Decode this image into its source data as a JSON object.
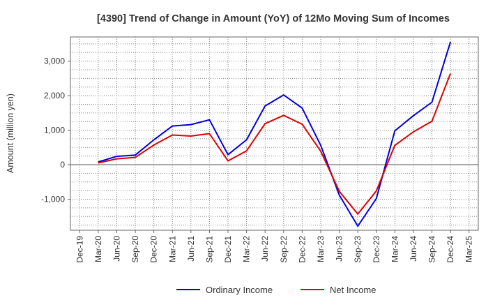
{
  "chart_data": {
    "type": "line",
    "title": "[4390]  Trend of Change in Amount (YoY) of 12Mo Moving Sum of Incomes",
    "xlabel": "",
    "ylabel": "Amount (million yen)",
    "categories": [
      "Dec-19",
      "Mar-20",
      "Jun-20",
      "Sep-20",
      "Dec-20",
      "Mar-21",
      "Jun-21",
      "Sep-21",
      "Dec-21",
      "Mar-22",
      "Jun-22",
      "Sep-22",
      "Dec-22",
      "Mar-23",
      "Jun-23",
      "Sep-23",
      "Dec-23",
      "Mar-24",
      "Jun-24",
      "Sep-24",
      "Dec-24",
      "Mar-25"
    ],
    "ylim": [
      -1900,
      3700
    ],
    "yticks": [
      -1000,
      0,
      1000,
      2000,
      3000
    ],
    "ytick_labels": [
      "-1,000",
      "0",
      "1,000",
      "2,000",
      "3,000"
    ],
    "grid": true,
    "legend_position": "bottom",
    "series": [
      {
        "name": "Ordinary Income",
        "color": "#0000dd",
        "values": [
          null,
          80,
          240,
          280,
          720,
          1120,
          1160,
          1300,
          290,
          720,
          1700,
          2020,
          1640,
          560,
          -880,
          -1780,
          -980,
          980,
          1420,
          1810,
          3560,
          null
        ]
      },
      {
        "name": "Net Income",
        "color": "#dd0000",
        "values": [
          null,
          50,
          170,
          210,
          570,
          860,
          830,
          900,
          110,
          400,
          1190,
          1430,
          1170,
          390,
          -770,
          -1430,
          -760,
          560,
          950,
          1260,
          2640,
          null
        ]
      }
    ]
  }
}
